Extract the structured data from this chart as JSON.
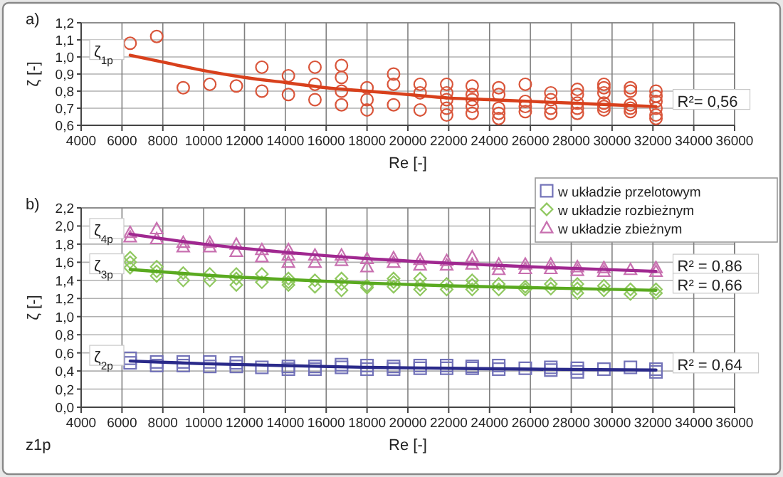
{
  "chart_data": [
    {
      "type": "scatter",
      "xlabel": "Re [-]",
      "ylabel": "ζ [-]",
      "xlim": [
        4000,
        36000
      ],
      "ylim": [
        0.6,
        1.2
      ],
      "xticks": [
        4000,
        6000,
        8000,
        10000,
        12000,
        14000,
        16000,
        18000,
        20000,
        22000,
        24000,
        26000,
        28000,
        30000,
        32000,
        34000,
        36000
      ],
      "yticks": [
        {
          "value": 0.6,
          "label": "0,6"
        },
        {
          "value": 0.7,
          "label": "0,7"
        },
        {
          "value": 0.8,
          "label": "0,8"
        },
        {
          "value": 0.9,
          "label": "0,9"
        },
        {
          "value": 1.0,
          "label": "1,0"
        },
        {
          "value": 1.1,
          "label": "1,1"
        },
        {
          "value": 1.2,
          "label": "1,2"
        }
      ],
      "grid": true,
      "legend": false,
      "annotations": [
        "a)",
        "ζ$_{1p}$",
        "R²= 0,56"
      ],
      "series": [
        {
          "type": "scatter",
          "marker": "circle",
          "color": "#d9553a",
          "x": [
            6400,
            7700,
            9000,
            10300,
            11600,
            12850,
            12850,
            14150,
            14150,
            15450,
            15450,
            15450,
            16750,
            16750,
            16750,
            16750,
            18000,
            18000,
            18000,
            19300,
            19300,
            19300,
            20600,
            20600,
            20600,
            21900,
            21900,
            21900,
            21900,
            21900,
            23150,
            23150,
            23150,
            23150,
            23150,
            24450,
            24450,
            24450,
            24450,
            24450,
            25750,
            25750,
            25750,
            25750,
            27000,
            27000,
            27000,
            27000,
            28300,
            28300,
            28300,
            28300,
            28300,
            29600,
            29600,
            29600,
            29600,
            29600,
            29600,
            30900,
            30900,
            30900,
            30900,
            30900,
            32150,
            32150,
            32150,
            32150,
            32150,
            32150
          ],
          "values": [
            1.08,
            1.12,
            0.82,
            0.84,
            0.83,
            0.94,
            0.8,
            0.89,
            0.78,
            0.94,
            0.84,
            0.75,
            0.95,
            0.88,
            0.8,
            0.72,
            0.82,
            0.75,
            0.69,
            0.9,
            0.84,
            0.72,
            0.84,
            0.79,
            0.69,
            0.84,
            0.79,
            0.75,
            0.7,
            0.66,
            0.83,
            0.78,
            0.75,
            0.71,
            0.67,
            0.82,
            0.78,
            0.7,
            0.67,
            0.64,
            0.84,
            0.74,
            0.71,
            0.68,
            0.79,
            0.75,
            0.7,
            0.67,
            0.81,
            0.78,
            0.73,
            0.7,
            0.67,
            0.84,
            0.82,
            0.79,
            0.73,
            0.71,
            0.69,
            0.82,
            0.8,
            0.72,
            0.7,
            0.68,
            0.8,
            0.77,
            0.74,
            0.7,
            0.66,
            0.64
          ]
        },
        {
          "type": "line",
          "color": "#d8401c",
          "x": [
            6400,
            8000,
            10000,
            12000,
            14000,
            16000,
            18000,
            20000,
            22000,
            24000,
            26000,
            28000,
            30000,
            32150
          ],
          "values": [
            1.01,
            0.97,
            0.92,
            0.88,
            0.85,
            0.82,
            0.8,
            0.78,
            0.76,
            0.75,
            0.74,
            0.73,
            0.72,
            0.71
          ]
        }
      ]
    },
    {
      "type": "scatter",
      "xlabel": "Re [-]",
      "ylabel": "ζ [-]",
      "xlim": [
        4000,
        36000
      ],
      "ylim": [
        0,
        2.2
      ],
      "xticks": [
        4000,
        6000,
        8000,
        10000,
        12000,
        14000,
        16000,
        18000,
        20000,
        22000,
        24000,
        26000,
        28000,
        30000,
        32000,
        34000,
        36000
      ],
      "yticks": [
        {
          "value": 0,
          "label": "0,0"
        },
        {
          "value": 0.2,
          "label": "0,2"
        },
        {
          "value": 0.4,
          "label": "0,4"
        },
        {
          "value": 0.6,
          "label": "0,6"
        },
        {
          "value": 0.8,
          "label": "0,8"
        },
        {
          "value": 1.0,
          "label": "1,0"
        },
        {
          "value": 1.2,
          "label": "1,2"
        },
        {
          "value": 1.4,
          "label": "1,4"
        },
        {
          "value": 1.6,
          "label": "1,6"
        },
        {
          "value": 1.8,
          "label": "1,8"
        },
        {
          "value": 2.0,
          "label": "2,0"
        },
        {
          "value": 2.2,
          "label": "2,2"
        }
      ],
      "grid": true,
      "legend": "top right",
      "annotations": [
        "b)",
        "z1p",
        "ζ$_{4p}$",
        "ζ$_{3p}$",
        "ζ$_{2p}$",
        "R² = 0,86",
        "R² = 0,66",
        "R² = 0,64"
      ],
      "series": [
        {
          "type": "scatter",
          "name": "w układzie przelotowym",
          "marker": "square",
          "color": "#7272b8",
          "x": [
            6400,
            6400,
            7700,
            7700,
            9000,
            9000,
            10300,
            10300,
            11600,
            11600,
            12850,
            14150,
            14150,
            15450,
            15450,
            16750,
            16750,
            18000,
            18000,
            19300,
            19300,
            20600,
            20600,
            21900,
            21900,
            23150,
            23150,
            24450,
            24450,
            25750,
            27000,
            27000,
            28300,
            28300,
            29600,
            30900,
            32150,
            32150
          ],
          "values": [
            0.54,
            0.49,
            0.5,
            0.46,
            0.5,
            0.46,
            0.5,
            0.45,
            0.49,
            0.45,
            0.44,
            0.45,
            0.42,
            0.45,
            0.42,
            0.47,
            0.44,
            0.46,
            0.42,
            0.45,
            0.42,
            0.46,
            0.43,
            0.46,
            0.43,
            0.45,
            0.43,
            0.46,
            0.42,
            0.43,
            0.44,
            0.41,
            0.43,
            0.39,
            0.42,
            0.44,
            0.42,
            0.39
          ]
        },
        {
          "type": "scatter",
          "name": "w układzie rozbieżnym",
          "marker": "diamond",
          "color": "#90c860",
          "x": [
            6400,
            6400,
            6400,
            7700,
            7700,
            7700,
            9000,
            9000,
            10300,
            10300,
            11600,
            11600,
            11600,
            12850,
            12850,
            14150,
            14150,
            14150,
            15450,
            15450,
            16750,
            16750,
            16750,
            18000,
            18000,
            19300,
            19300,
            19300,
            20600,
            20600,
            20600,
            21900,
            21900,
            23150,
            23150,
            23150,
            24450,
            24450,
            25750,
            25750,
            27000,
            27000,
            28300,
            28300,
            28300,
            29600,
            29600,
            30900,
            30900,
            32150,
            32150
          ],
          "values": [
            1.65,
            1.6,
            1.54,
            1.55,
            1.5,
            1.45,
            1.48,
            1.4,
            1.47,
            1.4,
            1.47,
            1.42,
            1.35,
            1.47,
            1.38,
            1.42,
            1.38,
            1.35,
            1.4,
            1.33,
            1.42,
            1.36,
            1.29,
            1.34,
            1.32,
            1.42,
            1.38,
            1.33,
            1.42,
            1.35,
            1.3,
            1.36,
            1.3,
            1.4,
            1.35,
            1.3,
            1.36,
            1.3,
            1.33,
            1.3,
            1.36,
            1.31,
            1.36,
            1.31,
            1.26,
            1.34,
            1.29,
            1.3,
            1.25,
            1.3,
            1.26
          ]
        },
        {
          "type": "scatter",
          "name": "w układzie zbieżnym",
          "marker": "triangle",
          "color": "#c870b0",
          "x": [
            6400,
            6400,
            7700,
            7700,
            9000,
            9000,
            10300,
            10300,
            11600,
            11600,
            12850,
            12850,
            14150,
            14150,
            14150,
            15450,
            15450,
            16750,
            16750,
            18000,
            18000,
            19300,
            19300,
            20600,
            20600,
            21900,
            21900,
            23150,
            23150,
            24450,
            24450,
            25750,
            25750,
            27000,
            27000,
            28300,
            28300,
            29600,
            29600,
            30900,
            32150,
            32150
          ],
          "values": [
            1.93,
            1.88,
            1.97,
            1.86,
            1.82,
            1.77,
            1.82,
            1.77,
            1.8,
            1.72,
            1.74,
            1.66,
            1.74,
            1.68,
            1.6,
            1.68,
            1.6,
            1.68,
            1.62,
            1.64,
            1.55,
            1.65,
            1.6,
            1.63,
            1.57,
            1.62,
            1.57,
            1.66,
            1.58,
            1.58,
            1.52,
            1.58,
            1.53,
            1.58,
            1.53,
            1.55,
            1.51,
            1.54,
            1.5,
            1.52,
            1.54,
            1.5
          ]
        },
        {
          "type": "line",
          "color": "#a02890",
          "x": [
            6400,
            10000,
            14000,
            18000,
            22000,
            26000,
            32150
          ],
          "values": [
            1.91,
            1.8,
            1.71,
            1.64,
            1.59,
            1.55,
            1.5
          ]
        },
        {
          "type": "line",
          "color": "#5aaa20",
          "x": [
            6400,
            10000,
            14000,
            18000,
            22000,
            26000,
            32150
          ],
          "values": [
            1.52,
            1.46,
            1.41,
            1.37,
            1.34,
            1.32,
            1.29
          ]
        },
        {
          "type": "line",
          "color": "#2a2a8a",
          "x": [
            6400,
            10000,
            14000,
            18000,
            22000,
            26000,
            32150
          ],
          "values": [
            0.51,
            0.48,
            0.46,
            0.44,
            0.43,
            0.42,
            0.41
          ]
        }
      ]
    }
  ]
}
